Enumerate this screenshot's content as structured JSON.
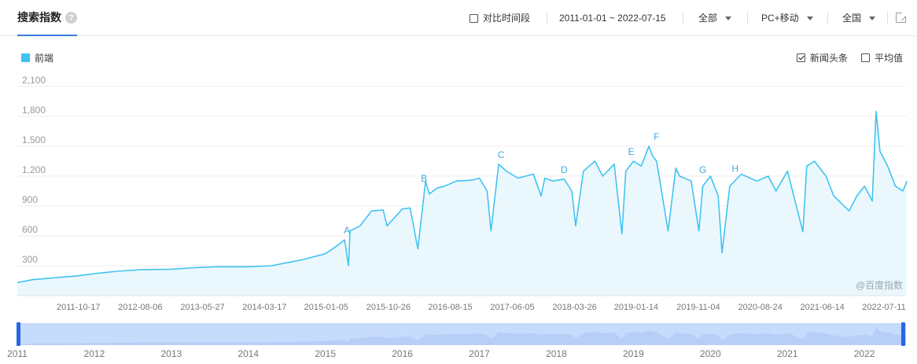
{
  "header": {
    "title": "搜索指数",
    "help_glyph": "?",
    "compare_label": "对比时间段",
    "date_range": "2011-01-01 ~ 2022-07-15",
    "region_filter": "全部",
    "device_filter": "PC+移动",
    "area_filter": "全国"
  },
  "legend": {
    "series_name": "前端",
    "color": "#41c3f1"
  },
  "options": {
    "news_label": "新闻头条",
    "news_checked": true,
    "avg_label": "平均值",
    "avg_checked": false
  },
  "watermark": "@百度指数",
  "chart_data": {
    "type": "area",
    "series_name": "前端",
    "ylim": [
      0,
      2100
    ],
    "yticks": [
      300,
      600,
      900,
      "1,200",
      "1,500",
      "1,800",
      "2,100"
    ],
    "ytick_values": [
      300,
      600,
      900,
      1200,
      1500,
      1800,
      2100
    ],
    "xlim": [
      "2011-01-01",
      "2022-07-15"
    ],
    "x_tick_labels": [
      "2011-10-17",
      "2012-08-06",
      "2013-05-27",
      "2014-03-17",
      "2015-01-05",
      "2015-10-26",
      "2016-08-15",
      "2017-06-05",
      "2018-03-26",
      "2019-01-14",
      "2019-11-04",
      "2020-08-24",
      "2021-06-14",
      "2022-07-11"
    ],
    "x": [
      2011.0,
      2011.2,
      2011.5,
      2011.8,
      2012.0,
      2012.3,
      2012.6,
      2013.0,
      2013.3,
      2013.6,
      2014.0,
      2014.3,
      2014.5,
      2014.7,
      2015.0,
      2015.15,
      2015.25,
      2015.3,
      2015.32,
      2015.45,
      2015.6,
      2015.75,
      2015.8,
      2016.0,
      2016.1,
      2016.2,
      2016.3,
      2016.35,
      2016.45,
      2016.55,
      2016.7,
      2016.9,
      2017.0,
      2017.1,
      2017.15,
      2017.25,
      2017.35,
      2017.5,
      2017.7,
      2017.8,
      2017.85,
      2017.95,
      2018.1,
      2018.2,
      2018.25,
      2018.35,
      2018.5,
      2018.6,
      2018.75,
      2018.85,
      2018.9,
      2019.0,
      2019.1,
      2019.2,
      2019.25,
      2019.3,
      2019.45,
      2019.55,
      2019.6,
      2019.75,
      2019.85,
      2019.9,
      2020.0,
      2020.1,
      2020.15,
      2020.25,
      2020.4,
      2020.6,
      2020.75,
      2020.85,
      2021.0,
      2021.2,
      2021.25,
      2021.35,
      2021.5,
      2021.6,
      2021.8,
      2021.9,
      2022.0,
      2022.1,
      2022.15,
      2022.2,
      2022.3,
      2022.4,
      2022.5,
      2022.55
    ],
    "y": [
      130,
      160,
      180,
      200,
      220,
      245,
      260,
      265,
      280,
      290,
      290,
      300,
      330,
      360,
      420,
      500,
      560,
      300,
      650,
      700,
      850,
      860,
      700,
      870,
      880,
      470,
      1150,
      1020,
      1080,
      1100,
      1150,
      1160,
      1180,
      1050,
      650,
      1320,
      1250,
      1180,
      1220,
      1000,
      1180,
      1150,
      1170,
      1050,
      700,
      1250,
      1350,
      1200,
      1320,
      620,
      1250,
      1350,
      1300,
      1500,
      1400,
      1350,
      650,
      1280,
      1200,
      1150,
      650,
      1100,
      1200,
      1000,
      430,
      1100,
      1220,
      1150,
      1200,
      1050,
      1250,
      640,
      1300,
      1350,
      1200,
      1000,
      850,
      1000,
      1100,
      950,
      1850,
      1450,
      1300,
      1100,
      1050,
      1150
    ],
    "annotations": [
      {
        "label": "A",
        "x": 2015.28,
        "y": 560
      },
      {
        "label": "B",
        "x": 2016.28,
        "y": 1080
      },
      {
        "label": "C",
        "x": 2017.28,
        "y": 1320
      },
      {
        "label": "D",
        "x": 2018.1,
        "y": 1170
      },
      {
        "label": "E",
        "x": 2018.97,
        "y": 1350
      },
      {
        "label": "F",
        "x": 2019.3,
        "y": 1500
      },
      {
        "label": "G",
        "x": 2019.9,
        "y": 1170
      },
      {
        "label": "H",
        "x": 2020.32,
        "y": 1180
      }
    ]
  },
  "range_slider": {
    "years": [
      "2011",
      "2012",
      "2013",
      "2014",
      "2015",
      "2016",
      "2017",
      "2018",
      "2019",
      "2020",
      "2021",
      "2022"
    ]
  }
}
